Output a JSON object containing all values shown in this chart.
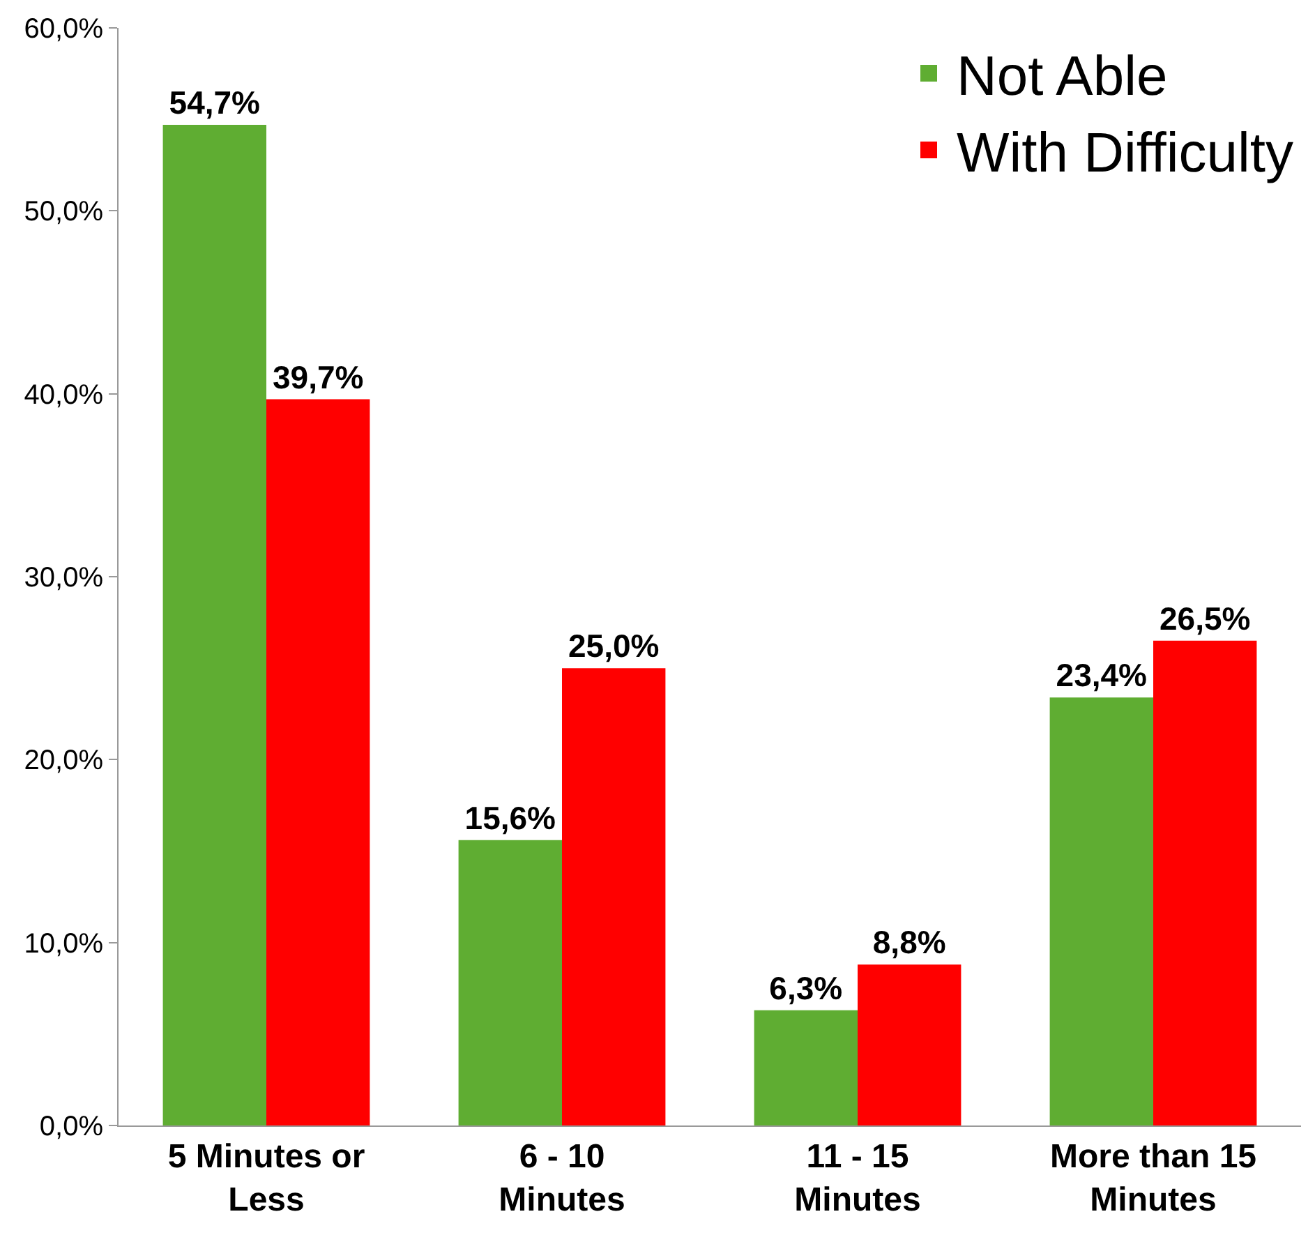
{
  "chart_data": {
    "type": "bar",
    "categories": [
      "5 Minutes or\nLess",
      "6 - 10\nMinutes",
      "11 - 15\nMinutes",
      "More than 15\nMinutes"
    ],
    "series": [
      {
        "name": "Not Able",
        "color": "#5fad32",
        "values": [
          54.7,
          15.6,
          6.3,
          23.4
        ],
        "value_labels": [
          "54,7%",
          "15,6%",
          "6,3%",
          "23,4%"
        ]
      },
      {
        "name": "With Difficulty",
        "color": "#ff0000",
        "values": [
          39.7,
          25.0,
          8.8,
          26.5
        ],
        "value_labels": [
          "39,7%",
          "25,0%",
          "8,8%",
          "26,5%"
        ]
      }
    ],
    "ylim": [
      0,
      60
    ],
    "yticks": [
      {
        "value": 0,
        "label": "0,0%"
      },
      {
        "value": 10,
        "label": "10,0%"
      },
      {
        "value": 20,
        "label": "20,0%"
      },
      {
        "value": 30,
        "label": "30,0%"
      },
      {
        "value": 40,
        "label": "40,0%"
      },
      {
        "value": 50,
        "label": "50,0%"
      },
      {
        "value": 60,
        "label": "60,0%"
      }
    ],
    "legend": "top right"
  }
}
